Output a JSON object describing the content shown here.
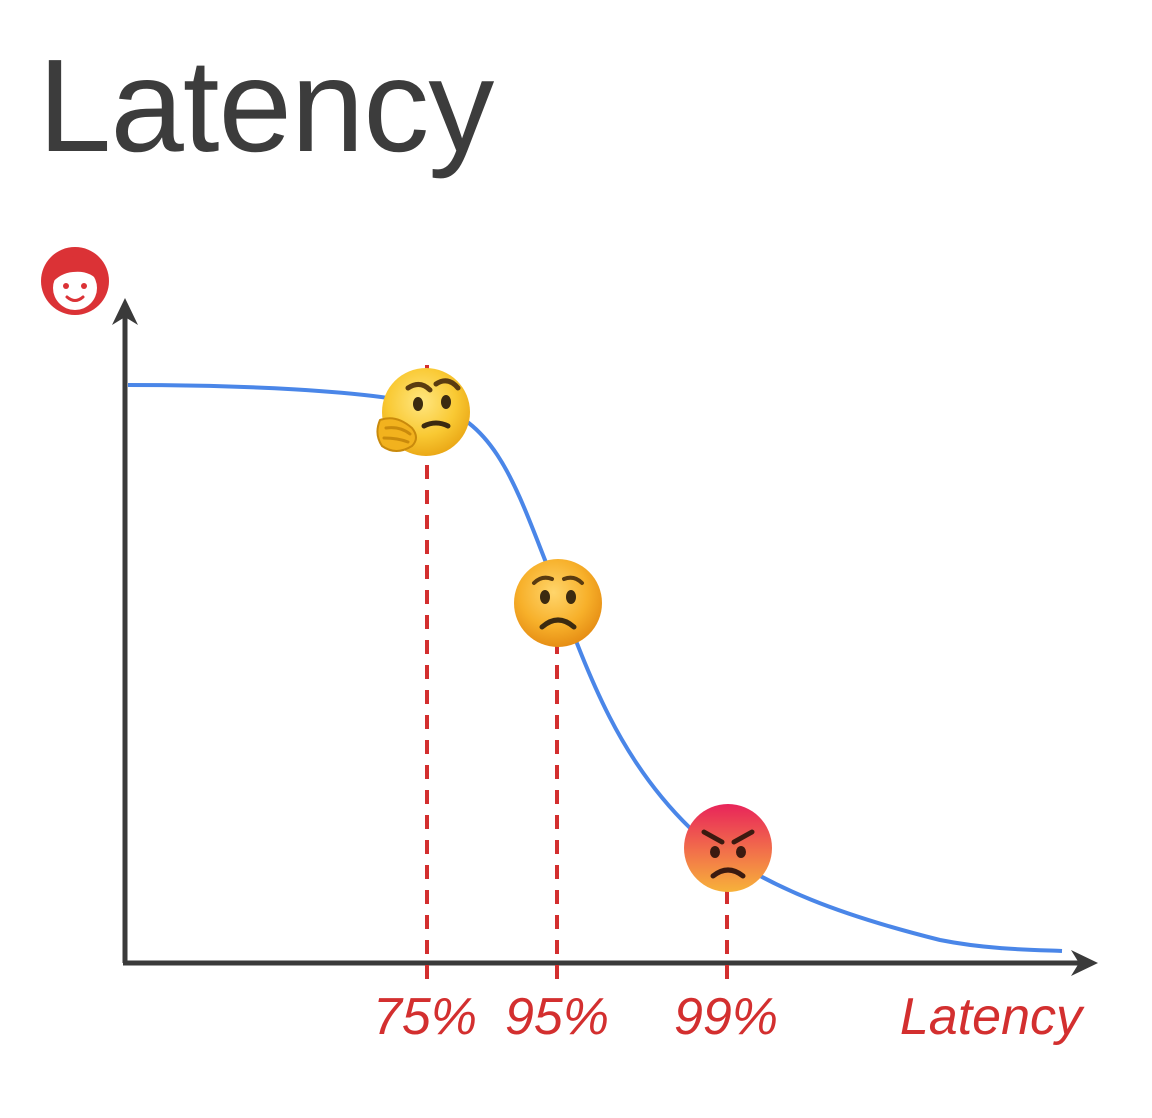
{
  "title": "Latency",
  "axis": {
    "x_label": "Latency",
    "y_icon": "happy-user-face-icon"
  },
  "percentile_labels": [
    "75%",
    "95%",
    "99%"
  ],
  "markers": [
    {
      "percentile": "75%",
      "icon": "thinking-face-icon"
    },
    {
      "percentile": "95%",
      "icon": "worried-face-icon"
    },
    {
      "percentile": "99%",
      "icon": "angry-face-icon"
    }
  ],
  "colors": {
    "title": "#3c3c3c",
    "axis": "#3a3a3a",
    "curve": "#4a86e8",
    "accent": "#d32f2f"
  }
}
